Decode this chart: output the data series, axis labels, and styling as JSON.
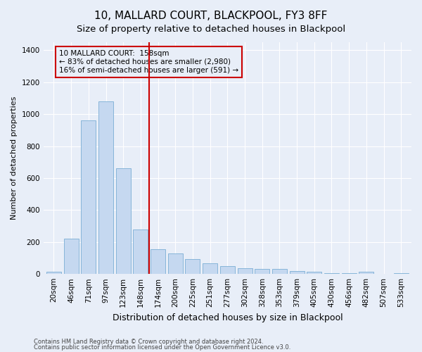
{
  "title": "10, MALLARD COURT, BLACKPOOL, FY3 8FF",
  "subtitle": "Size of property relative to detached houses in Blackpool",
  "xlabel": "Distribution of detached houses by size in Blackpool",
  "ylabel": "Number of detached properties",
  "categories": [
    "20sqm",
    "46sqm",
    "71sqm",
    "97sqm",
    "123sqm",
    "148sqm",
    "174sqm",
    "200sqm",
    "225sqm",
    "251sqm",
    "277sqm",
    "302sqm",
    "328sqm",
    "353sqm",
    "379sqm",
    "405sqm",
    "430sqm",
    "456sqm",
    "482sqm",
    "507sqm",
    "533sqm"
  ],
  "values": [
    15,
    220,
    960,
    1080,
    660,
    280,
    155,
    130,
    95,
    65,
    48,
    35,
    32,
    30,
    18,
    12,
    5,
    3,
    12,
    2,
    3
  ],
  "bar_color": "#c5d8f0",
  "bar_edge_color": "#7aaed4",
  "property_line_x": 5.5,
  "property_line_color": "#cc0000",
  "annotation_text": "10 MALLARD COURT:  158sqm\n← 83% of detached houses are smaller (2,980)\n16% of semi-detached houses are larger (591) →",
  "annotation_box_color": "#cc0000",
  "ylim": [
    0,
    1450
  ],
  "yticks": [
    0,
    200,
    400,
    600,
    800,
    1000,
    1200,
    1400
  ],
  "footer1": "Contains HM Land Registry data © Crown copyright and database right 2024.",
  "footer2": "Contains public sector information licensed under the Open Government Licence v3.0.",
  "bg_color": "#e8eef8",
  "grid_color": "#ffffff",
  "title_fontsize": 11,
  "tick_fontsize": 7.5,
  "ylabel_fontsize": 8,
  "xlabel_fontsize": 9
}
